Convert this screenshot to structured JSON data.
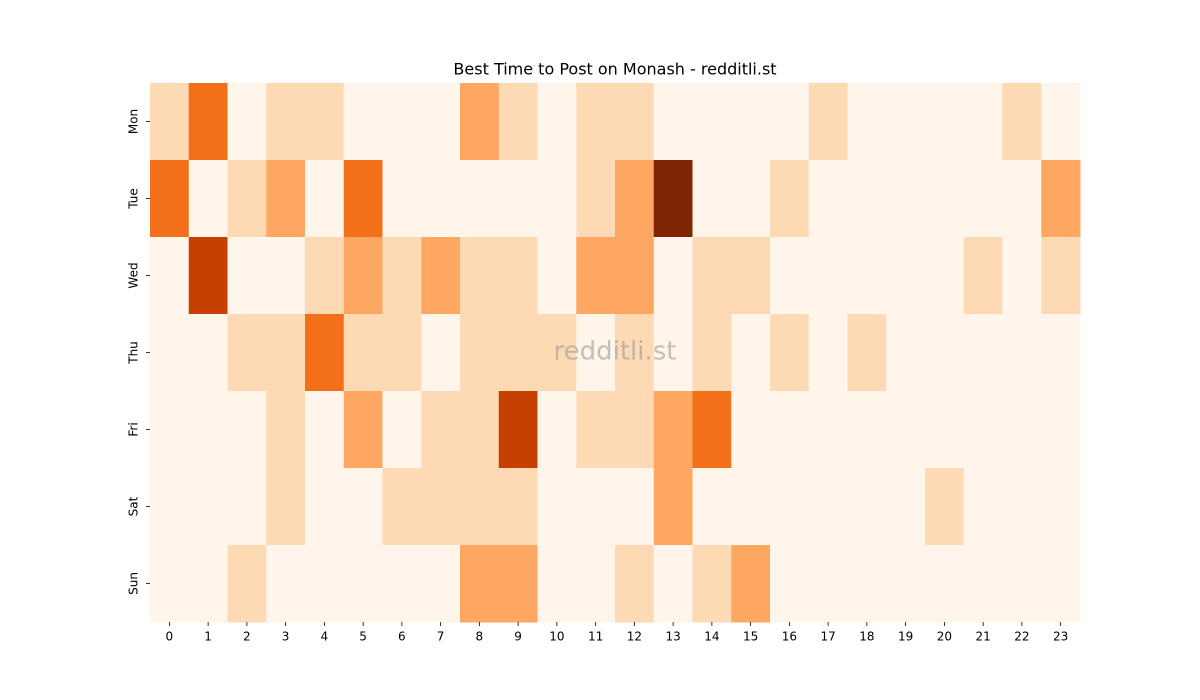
{
  "chart_data": {
    "type": "heatmap",
    "title": "Best Time to Post on Monash - redditli.st",
    "watermark": "redditli.st",
    "x": [
      0,
      1,
      2,
      3,
      4,
      5,
      6,
      7,
      8,
      9,
      10,
      11,
      12,
      13,
      14,
      15,
      16,
      17,
      18,
      19,
      20,
      21,
      22,
      23
    ],
    "categories": [
      "Mon",
      "Tue",
      "Wed",
      "Thu",
      "Fri",
      "Sat",
      "Sun"
    ],
    "values": [
      [
        1,
        3,
        0,
        1,
        1,
        0,
        0,
        0,
        2,
        1,
        0,
        1,
        1,
        0,
        0,
        0,
        0,
        1,
        0,
        0,
        0,
        0,
        1,
        0
      ],
      [
        3,
        0,
        1,
        2,
        0,
        3,
        0,
        0,
        0,
        0,
        0,
        1,
        2,
        5,
        0,
        0,
        1,
        0,
        0,
        0,
        0,
        0,
        0,
        2
      ],
      [
        0,
        4,
        0,
        0,
        1,
        2,
        1,
        2,
        1,
        1,
        0,
        2,
        2,
        0,
        1,
        1,
        0,
        0,
        0,
        0,
        0,
        1,
        0,
        1
      ],
      [
        0,
        0,
        1,
        1,
        3,
        1,
        1,
        0,
        1,
        1,
        1,
        0,
        1,
        0,
        1,
        0,
        1,
        0,
        1,
        0,
        0,
        0,
        0,
        0
      ],
      [
        0,
        0,
        0,
        1,
        0,
        2,
        0,
        1,
        1,
        4,
        0,
        1,
        1,
        2,
        3,
        0,
        0,
        0,
        0,
        0,
        0,
        0,
        0,
        0
      ],
      [
        0,
        0,
        0,
        1,
        0,
        0,
        1,
        1,
        1,
        1,
        0,
        0,
        0,
        2,
        0,
        0,
        0,
        0,
        0,
        0,
        1,
        0,
        0,
        0
      ],
      [
        0,
        0,
        1,
        0,
        0,
        0,
        0,
        0,
        2,
        2,
        0,
        0,
        1,
        0,
        1,
        2,
        0,
        0,
        0,
        0,
        0,
        0,
        0,
        0
      ]
    ],
    "clim": [
      0,
      5
    ],
    "colors": [
      "#fff5eb",
      "#fdd9b4",
      "#fda762",
      "#f3701b",
      "#c54102",
      "#7f2704"
    ]
  }
}
